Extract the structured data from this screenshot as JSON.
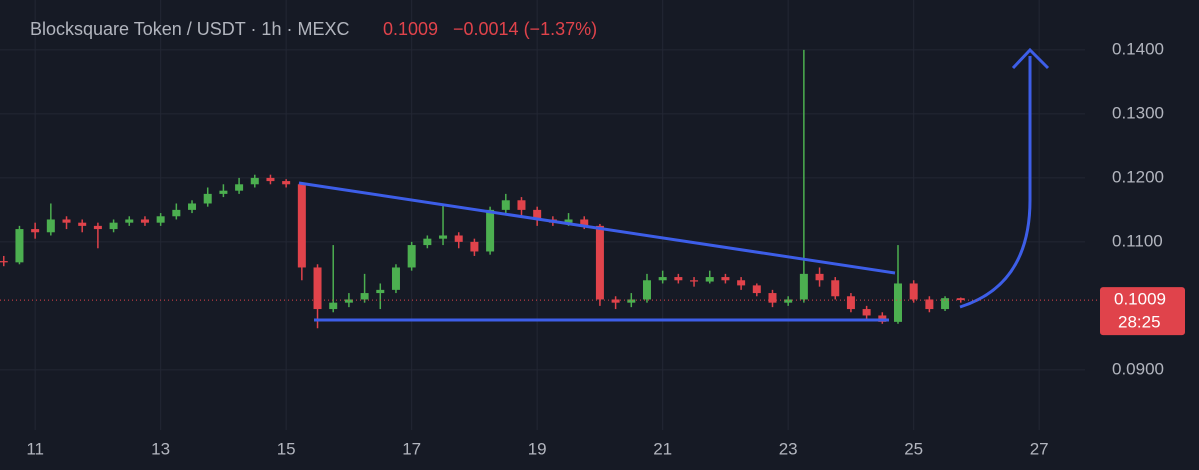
{
  "chart_data": {
    "type": "candlestick",
    "title": "Blocksquare Token / USDT · 1h · MEXC",
    "last_price": 0.1009,
    "change": "−0.0014 (−1.37%)",
    "countdown": "28:25",
    "up_color": "#4caf50",
    "down_color": "#e0434b",
    "grid": true,
    "xlim": [
      10.44,
      27.73
    ],
    "xticks": [
      11,
      13,
      15,
      17,
      19,
      21,
      23,
      25,
      27
    ],
    "ylim": [
      0.0806,
      0.1478
    ],
    "yticks": [
      {
        "value": 0.09,
        "label": "0.0900"
      },
      {
        "value": 0.11,
        "label": "0.1100"
      },
      {
        "value": 0.12,
        "label": "0.1200"
      },
      {
        "value": 0.13,
        "label": "0.1300"
      },
      {
        "value": 0.14,
        "label": "0.1400"
      }
    ],
    "x": [
      10.5,
      10.75,
      11,
      11.25,
      11.5,
      11.75,
      12,
      12.25,
      12.5,
      12.75,
      13,
      13.25,
      13.5,
      13.75,
      14,
      14.25,
      14.5,
      14.75,
      15,
      15.25,
      15.5,
      15.75,
      16,
      16.25,
      16.5,
      16.75,
      17,
      17.25,
      17.5,
      17.75,
      18,
      18.25,
      18.5,
      18.75,
      19,
      19.25,
      19.5,
      19.75,
      20,
      20.25,
      20.5,
      20.75,
      21,
      21.25,
      21.5,
      21.75,
      22,
      22.25,
      22.5,
      22.75,
      23,
      23.25,
      23.5,
      23.75,
      24,
      24.25,
      24.5,
      24.75,
      25,
      25.25,
      25.5,
      25.75
    ],
    "open": [
      0.107,
      0.1068,
      0.112,
      0.1115,
      0.1135,
      0.113,
      0.1125,
      0.112,
      0.113,
      0.1135,
      0.113,
      0.114,
      0.115,
      0.116,
      0.1175,
      0.118,
      0.119,
      0.12,
      0.1195,
      0.119,
      0.106,
      0.0995,
      0.1005,
      0.101,
      0.102,
      0.1025,
      0.106,
      0.1095,
      0.1105,
      0.111,
      0.11,
      0.1085,
      0.115,
      0.1165,
      0.115,
      0.1135,
      0.113,
      0.1135,
      0.1125,
      0.101,
      0.1005,
      0.101,
      0.104,
      0.1045,
      0.104,
      0.1038,
      0.1045,
      0.104,
      0.1032,
      0.102,
      0.1005,
      0.101,
      0.105,
      0.104,
      0.1015,
      0.0995,
      0.0985,
      0.0975,
      0.1035,
      0.101,
      0.0995,
      0.1012
    ],
    "high": [
      0.1078,
      0.1125,
      0.113,
      0.116,
      0.114,
      0.1135,
      0.113,
      0.1135,
      0.114,
      0.114,
      0.1145,
      0.116,
      0.1165,
      0.1185,
      0.119,
      0.12,
      0.1205,
      0.1205,
      0.1198,
      0.1192,
      0.1065,
      0.1095,
      0.102,
      0.105,
      0.1035,
      0.1065,
      0.11,
      0.111,
      0.116,
      0.1115,
      0.1105,
      0.1155,
      0.1175,
      0.117,
      0.1155,
      0.114,
      0.1145,
      0.114,
      0.1128,
      0.1015,
      0.102,
      0.105,
      0.1055,
      0.105,
      0.1045,
      0.1055,
      0.105,
      0.1045,
      0.1035,
      0.1025,
      0.1015,
      0.14,
      0.106,
      0.1045,
      0.102,
      0.1,
      0.099,
      0.1095,
      0.104,
      0.1015,
      0.1015,
      0.1013
    ],
    "low": [
      0.1062,
      0.1065,
      0.1105,
      0.111,
      0.112,
      0.1115,
      0.109,
      0.1115,
      0.1125,
      0.1125,
      0.1125,
      0.1135,
      0.1145,
      0.1155,
      0.117,
      0.1175,
      0.1185,
      0.119,
      0.1185,
      0.104,
      0.0965,
      0.099,
      0.0998,
      0.1005,
      0.0995,
      0.102,
      0.1055,
      0.109,
      0.1095,
      0.109,
      0.1078,
      0.108,
      0.1145,
      0.114,
      0.1125,
      0.1125,
      0.1125,
      0.112,
      0.1,
      0.0995,
      0.0998,
      0.1005,
      0.1035,
      0.1035,
      0.103,
      0.1035,
      0.1035,
      0.1025,
      0.1015,
      0.0998,
      0.1,
      0.1005,
      0.103,
      0.101,
      0.099,
      0.098,
      0.0972,
      0.0972,
      0.1005,
      0.099,
      0.0992,
      0.1005
    ],
    "close": [
      0.1068,
      0.112,
      0.1115,
      0.1135,
      0.113,
      0.1125,
      0.112,
      0.113,
      0.1135,
      0.113,
      0.114,
      0.115,
      0.116,
      0.1175,
      0.118,
      0.119,
      0.12,
      0.1195,
      0.119,
      0.106,
      0.0995,
      0.1005,
      0.101,
      0.102,
      0.1025,
      0.106,
      0.1095,
      0.1105,
      0.111,
      0.11,
      0.1085,
      0.115,
      0.1165,
      0.115,
      0.1135,
      0.113,
      0.1135,
      0.1125,
      0.101,
      0.1005,
      0.101,
      0.104,
      0.1045,
      0.104,
      0.1038,
      0.1045,
      0.104,
      0.1032,
      0.102,
      0.1005,
      0.101,
      0.105,
      0.104,
      0.1015,
      0.0995,
      0.0985,
      0.0975,
      0.1035,
      0.101,
      0.0995,
      0.1012,
      0.1009
    ]
  }
}
